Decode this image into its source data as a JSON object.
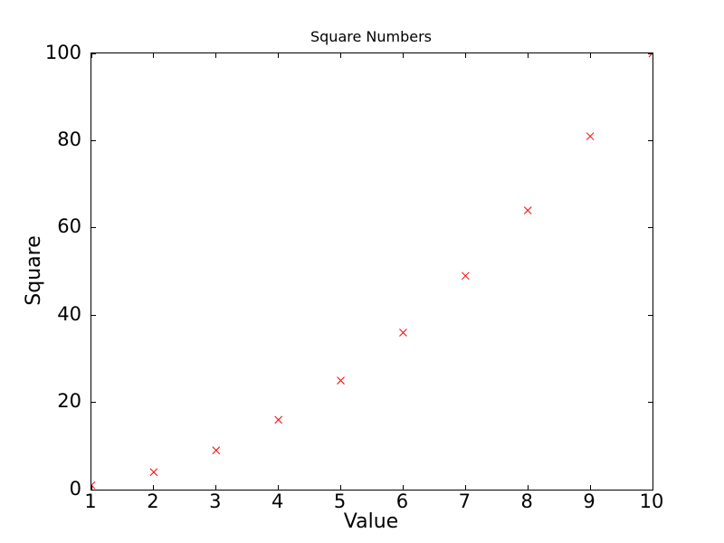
{
  "chart_data": {
    "type": "scatter",
    "title": "Square Numbers",
    "xlabel": "Value",
    "ylabel": "Square",
    "x": [
      1,
      2,
      3,
      4,
      5,
      6,
      7,
      8,
      9,
      10
    ],
    "y": [
      1,
      4,
      9,
      16,
      25,
      36,
      49,
      64,
      81,
      100
    ],
    "marker": "x",
    "marker_color": "#ff0000",
    "marker_size_px": 8,
    "axis_color": "#000000",
    "background_color": "#ffffff",
    "xlim": [
      1,
      10
    ],
    "ylim": [
      0,
      100
    ],
    "xticks": [
      1,
      2,
      3,
      4,
      5,
      6,
      7,
      8,
      9,
      10
    ],
    "yticks": [
      0,
      20,
      40,
      60,
      80,
      100
    ],
    "grid": false,
    "legend": "none",
    "tick_direction": "in",
    "ticks_on_all_sides": true
  }
}
